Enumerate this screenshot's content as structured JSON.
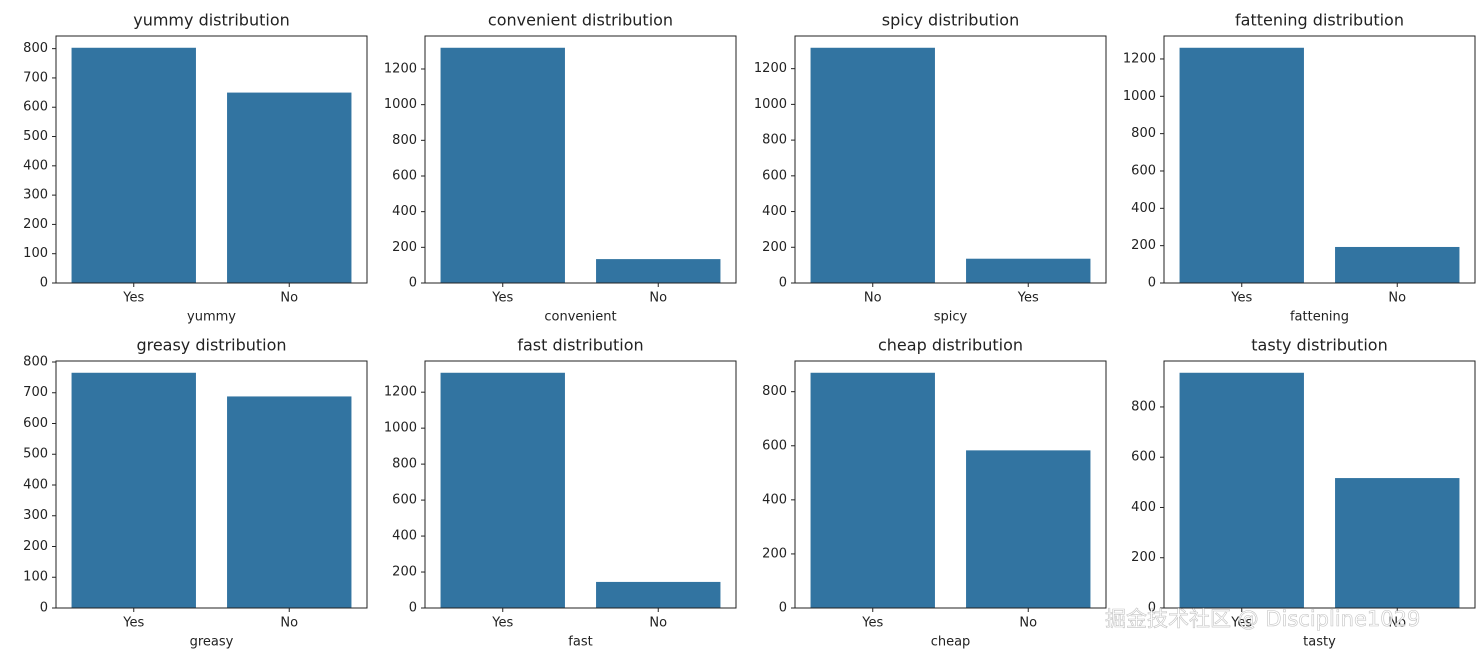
{
  "chart_data": [
    {
      "type": "bar",
      "title": "yummy distribution",
      "xlabel": "yummy",
      "categories": [
        "Yes",
        "No"
      ],
      "values": [
        803,
        650
      ],
      "color": "#3274a1",
      "ylim": [
        0,
        843.15
      ],
      "yticks": [
        0,
        100,
        200,
        300,
        400,
        500,
        600,
        700,
        800
      ]
    },
    {
      "type": "bar",
      "title": "convenient distribution",
      "xlabel": "convenient",
      "categories": [
        "Yes",
        "No"
      ],
      "values": [
        1319,
        134
      ],
      "color": "#3274a1",
      "ylim": [
        0,
        1384.95
      ],
      "yticks": [
        0,
        200,
        400,
        600,
        800,
        1000,
        1200
      ]
    },
    {
      "type": "bar",
      "title": "spicy distribution",
      "xlabel": "spicy",
      "categories": [
        "No",
        "Yes"
      ],
      "values": [
        1317,
        136
      ],
      "color": "#3274a1",
      "ylim": [
        0,
        1382.85
      ],
      "yticks": [
        0,
        200,
        400,
        600,
        800,
        1000,
        1200
      ]
    },
    {
      "type": "bar",
      "title": "fattening distribution",
      "xlabel": "fattening",
      "categories": [
        "Yes",
        "No"
      ],
      "values": [
        1260,
        193
      ],
      "color": "#3274a1",
      "ylim": [
        0,
        1323
      ],
      "yticks": [
        0,
        200,
        400,
        600,
        800,
        1000,
        1200
      ]
    },
    {
      "type": "bar",
      "title": "greasy distribution",
      "xlabel": "greasy",
      "categories": [
        "Yes",
        "No"
      ],
      "values": [
        765,
        688
      ],
      "color": "#3274a1",
      "ylim": [
        0,
        803.25
      ],
      "yticks": [
        0,
        100,
        200,
        300,
        400,
        500,
        600,
        700,
        800
      ]
    },
    {
      "type": "bar",
      "title": "fast distribution",
      "xlabel": "fast",
      "categories": [
        "Yes",
        "No"
      ],
      "values": [
        1308,
        145
      ],
      "color": "#3274a1",
      "ylim": [
        0,
        1373.4
      ],
      "yticks": [
        0,
        200,
        400,
        600,
        800,
        1000,
        1200
      ]
    },
    {
      "type": "bar",
      "title": "cheap distribution",
      "xlabel": "cheap",
      "categories": [
        "Yes",
        "No"
      ],
      "values": [
        870,
        583
      ],
      "color": "#3274a1",
      "ylim": [
        0,
        913.5
      ],
      "yticks": [
        0,
        200,
        400,
        600,
        800
      ]
    },
    {
      "type": "bar",
      "title": "tasty distribution",
      "xlabel": "tasty",
      "categories": [
        "Yes",
        "No"
      ],
      "values": [
        936,
        517
      ],
      "color": "#3274a1",
      "ylim": [
        0,
        982.8
      ],
      "yticks": [
        0,
        200,
        400,
        600,
        800
      ]
    }
  ],
  "watermark": "掘金技术社区 @ Discipline1029"
}
